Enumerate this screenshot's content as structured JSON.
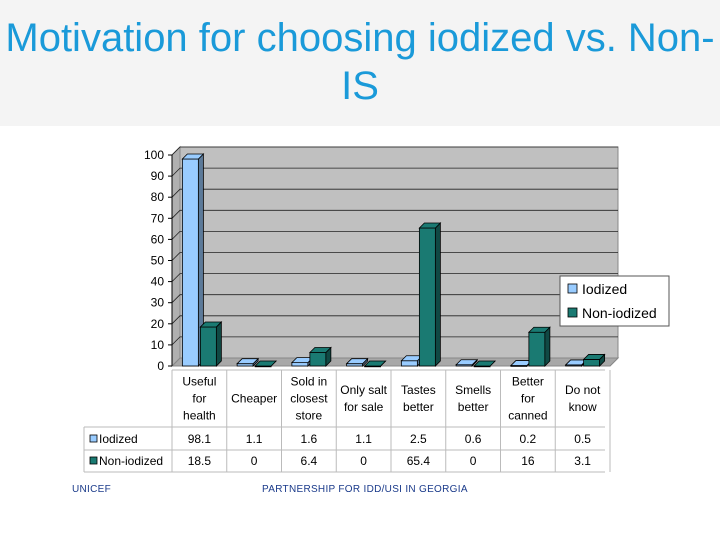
{
  "slide": {
    "title": "Motivation for choosing iodized vs. Non-IS",
    "footer_left": "UNICEF",
    "footer_right": "PARTNERSHIP FOR IDD/USI IN GEORGIA"
  },
  "colors": {
    "title": "#1a9ad9",
    "plot_background": "#c0c0c0",
    "iodized": "#99ccff",
    "non_iodized": "#1a7a72"
  },
  "chart_data": {
    "type": "bar",
    "title": "",
    "xlabel": "",
    "ylabel": "",
    "ylim": [
      0,
      100
    ],
    "yticks": [
      0,
      10,
      20,
      30,
      40,
      50,
      60,
      70,
      80,
      90,
      100
    ],
    "grid": true,
    "legend_position": "right",
    "categories": [
      [
        "Useful",
        "for",
        "health"
      ],
      [
        "Cheaper"
      ],
      [
        "Sold in",
        "closest",
        "store"
      ],
      [
        "Only salt",
        "for sale"
      ],
      [
        "Tastes",
        "better"
      ],
      [
        "Smells",
        "better"
      ],
      [
        "Better",
        "for",
        "canned"
      ],
      [
        "Do not",
        "know"
      ]
    ],
    "series": [
      {
        "name": "Iodized",
        "values": [
          98.1,
          1.1,
          1.6,
          1.1,
          2.5,
          0.6,
          0.2,
          0.5
        ]
      },
      {
        "name": "Non-iodized",
        "values": [
          18.5,
          0,
          6.4,
          0,
          65.4,
          0,
          16,
          3.1
        ]
      }
    ],
    "data_table": true
  }
}
